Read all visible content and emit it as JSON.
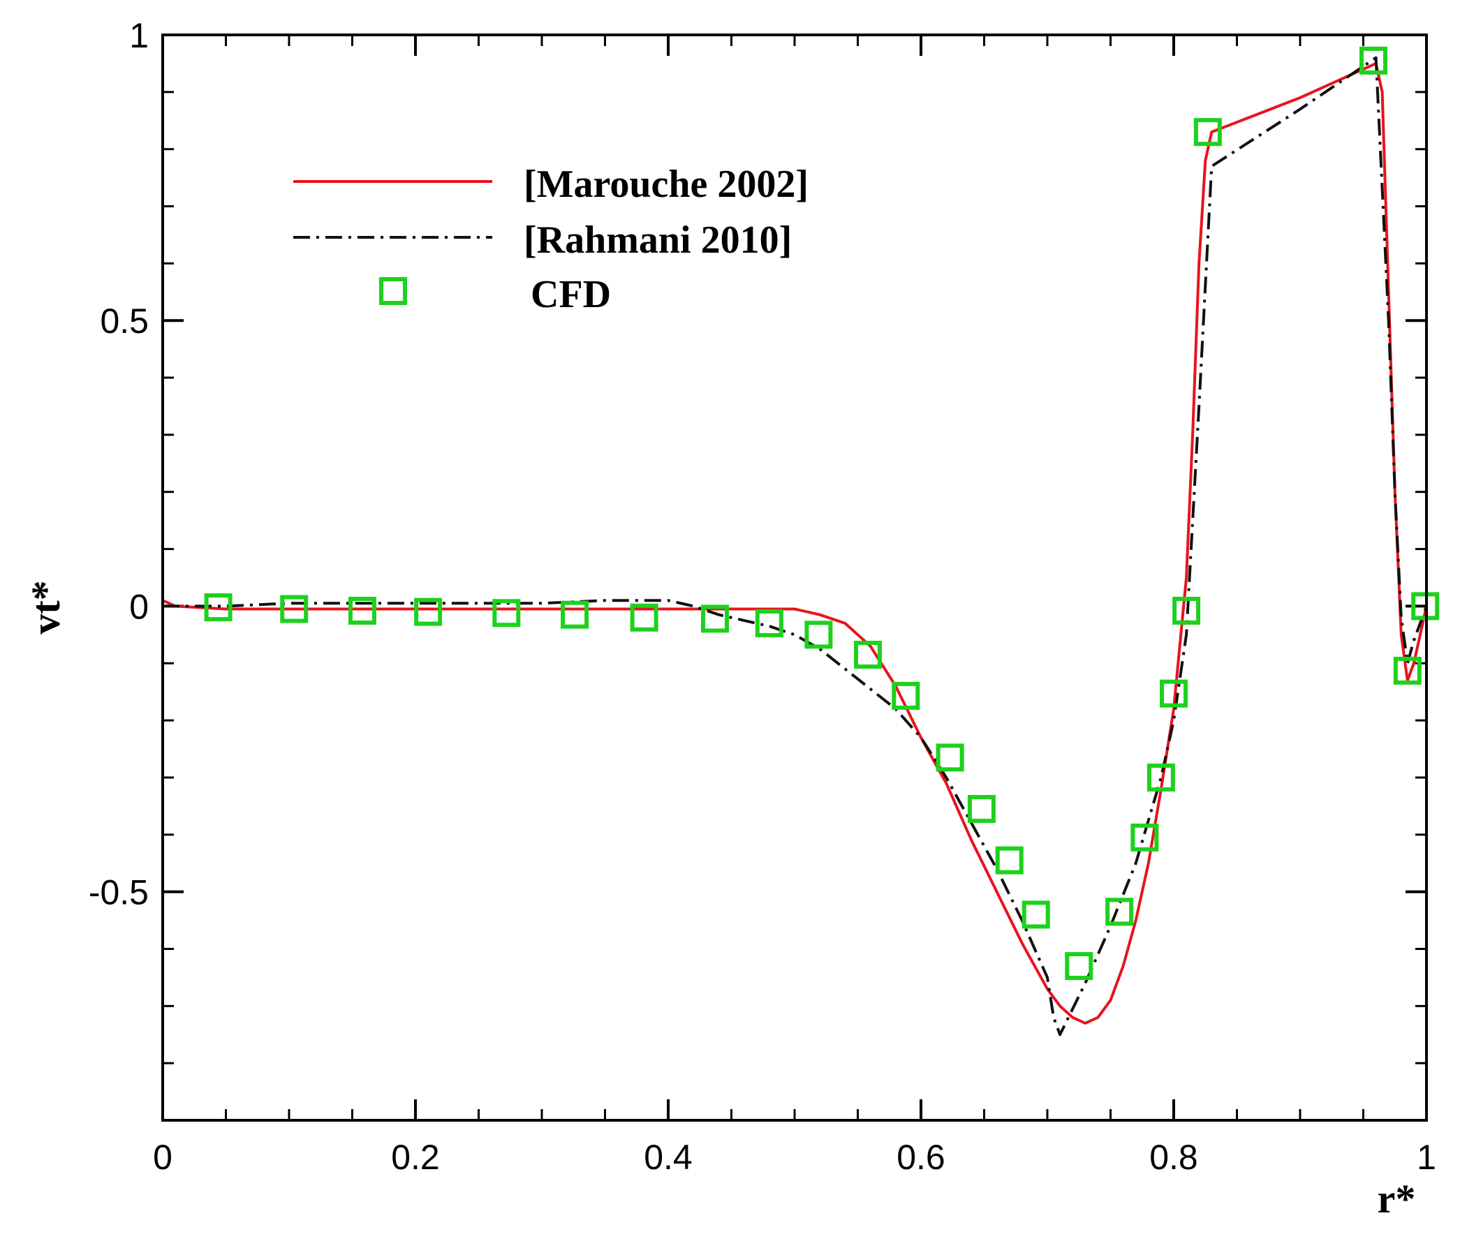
{
  "chart_data": {
    "type": "line",
    "title": "",
    "xlabel": "r*",
    "ylabel": "vt*",
    "xlim": [
      0,
      1
    ],
    "ylim": [
      -0.9,
      1
    ],
    "xticks": [
      0,
      0.2,
      0.4,
      0.6,
      0.8,
      1
    ],
    "xtick_labels": [
      "0",
      "0.2",
      "0.4",
      "0.6",
      "0.8",
      "1"
    ],
    "yticks": [
      1,
      0.5,
      0,
      -0.5
    ],
    "ytick_labels": [
      "1",
      "0.5",
      "0",
      "-0.5"
    ],
    "x_minor_step": 0.05,
    "y_minor_step": 0.1,
    "grid": false,
    "legend_position": "top-left",
    "series": [
      {
        "name": "[Marouche 2002]",
        "style": "solid",
        "color": "#e8141c",
        "x": [
          0,
          0.01,
          0.05,
          0.1,
          0.2,
          0.3,
          0.4,
          0.45,
          0.5,
          0.52,
          0.54,
          0.56,
          0.58,
          0.6,
          0.62,
          0.64,
          0.66,
          0.68,
          0.7,
          0.71,
          0.72,
          0.73,
          0.74,
          0.75,
          0.76,
          0.77,
          0.78,
          0.79,
          0.8,
          0.81,
          0.815,
          0.82,
          0.825,
          0.83,
          0.9,
          0.96,
          0.965,
          0.97,
          0.975,
          0.98,
          0.985,
          0.99,
          1.0
        ],
        "y": [
          0.01,
          0.0,
          -0.005,
          -0.005,
          -0.005,
          -0.005,
          -0.005,
          -0.005,
          -0.005,
          -0.015,
          -0.03,
          -0.07,
          -0.14,
          -0.23,
          -0.31,
          -0.41,
          -0.5,
          -0.59,
          -0.67,
          -0.7,
          -0.72,
          -0.73,
          -0.72,
          -0.69,
          -0.63,
          -0.55,
          -0.45,
          -0.32,
          -0.18,
          0.05,
          0.3,
          0.6,
          0.78,
          0.83,
          0.89,
          0.95,
          0.9,
          0.55,
          0.2,
          -0.05,
          -0.13,
          -0.1,
          0.0
        ]
      },
      {
        "name": "[Rahmani 2010]",
        "style": "dashdot",
        "color": "#111111",
        "x": [
          0,
          0.05,
          0.1,
          0.2,
          0.3,
          0.35,
          0.4,
          0.42,
          0.44,
          0.46,
          0.48,
          0.5,
          0.52,
          0.54,
          0.56,
          0.58,
          0.6,
          0.62,
          0.64,
          0.66,
          0.68,
          0.7,
          0.705,
          0.71,
          0.73,
          0.75,
          0.77,
          0.79,
          0.8,
          0.81,
          0.82,
          0.83,
          0.9,
          0.96,
          0.97,
          0.975,
          0.98,
          0.985,
          0.99,
          1.0
        ],
        "y": [
          0.0,
          0.0,
          0.005,
          0.005,
          0.005,
          0.01,
          0.01,
          0.0,
          -0.015,
          -0.025,
          -0.035,
          -0.05,
          -0.075,
          -0.11,
          -0.145,
          -0.18,
          -0.23,
          -0.3,
          -0.38,
          -0.46,
          -0.55,
          -0.65,
          -0.72,
          -0.75,
          -0.66,
          -0.56,
          -0.45,
          -0.3,
          -0.2,
          -0.05,
          0.35,
          0.77,
          0.87,
          0.96,
          0.5,
          0.2,
          -0.02,
          -0.1,
          -0.06,
          0.0
        ]
      },
      {
        "name": "CFD",
        "style": "markers",
        "marker": "square",
        "color": "#1dd11d",
        "x": [
          0.044,
          0.104,
          0.158,
          0.21,
          0.272,
          0.326,
          0.381,
          0.437,
          0.48,
          0.519,
          0.558,
          0.588,
          0.623,
          0.648,
          0.67,
          0.691,
          0.725,
          0.757,
          0.777,
          0.79,
          0.8,
          0.81,
          0.827,
          0.958,
          0.985,
          0.999
        ],
        "y": [
          -0.002,
          -0.005,
          -0.008,
          -0.01,
          -0.012,
          -0.015,
          -0.02,
          -0.022,
          -0.03,
          -0.05,
          -0.085,
          -0.157,
          -0.265,
          -0.355,
          -0.445,
          -0.54,
          -0.63,
          -0.535,
          -0.405,
          -0.3,
          -0.153,
          -0.008,
          0.83,
          0.955,
          -0.113,
          0.0
        ]
      }
    ]
  }
}
